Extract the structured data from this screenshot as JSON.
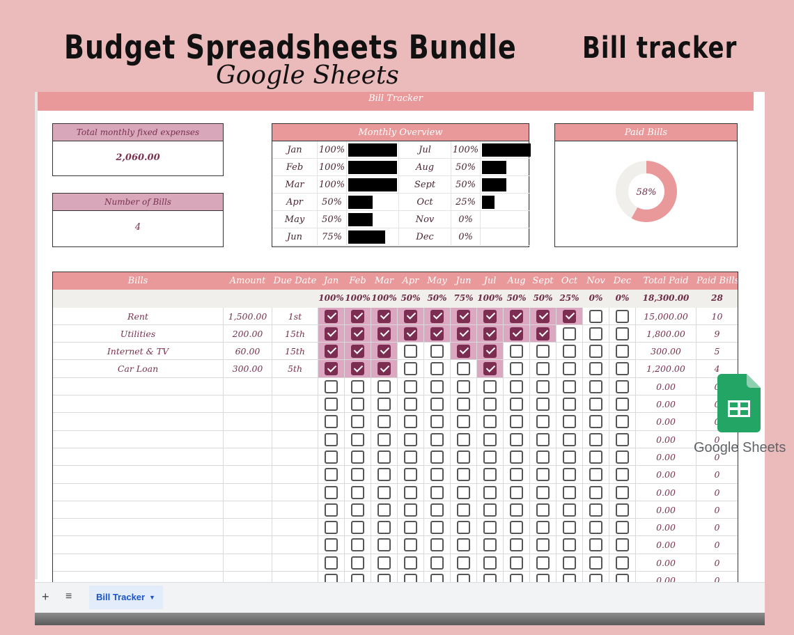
{
  "header": {
    "title": "Budget Spreadsheets Bundle",
    "subtitle": "Google Sheets",
    "right_title": "Bill tracker"
  },
  "sheet": {
    "banner": "Bill Tracker",
    "total_label": "Total monthly fixed expenses",
    "total_value": "2,060.00",
    "count_label": "Number of Bills",
    "count_value": "4",
    "overview_title": "Monthly Overview",
    "overview": [
      {
        "month": "Jan",
        "pct": "100%",
        "fill": 1.0
      },
      {
        "month": "Feb",
        "pct": "100%",
        "fill": 1.0
      },
      {
        "month": "Mar",
        "pct": "100%",
        "fill": 1.0
      },
      {
        "month": "Apr",
        "pct": "50%",
        "fill": 0.5
      },
      {
        "month": "May",
        "pct": "50%",
        "fill": 0.5
      },
      {
        "month": "Jun",
        "pct": "75%",
        "fill": 0.75
      },
      {
        "month": "Jul",
        "pct": "100%",
        "fill": 1.0
      },
      {
        "month": "Aug",
        "pct": "50%",
        "fill": 0.5
      },
      {
        "month": "Sept",
        "pct": "50%",
        "fill": 0.5
      },
      {
        "month": "Oct",
        "pct": "25%",
        "fill": 0.25
      },
      {
        "month": "Nov",
        "pct": "0%",
        "fill": 0
      },
      {
        "month": "Dec",
        "pct": "0%",
        "fill": 0
      }
    ],
    "paid_title": "Paid Bills",
    "paid_pct_label": "58%",
    "paid_fraction": 0.58,
    "colors": {
      "accent": "#e9999a",
      "check": "#7b2d52",
      "donut_rest": "#f1efeb"
    }
  },
  "bills": {
    "columns": [
      "Bills",
      "Amount",
      "Due Date",
      "Jan",
      "Feb",
      "Mar",
      "Apr",
      "May",
      "Jun",
      "Jul",
      "Aug",
      "Sept",
      "Oct",
      "Nov",
      "Dec",
      "Total Paid",
      "Paid Bills"
    ],
    "month_pcts": [
      "100%",
      "100%",
      "100%",
      "50%",
      "50%",
      "75%",
      "100%",
      "50%",
      "50%",
      "25%",
      "0%",
      "0%"
    ],
    "grand_total": "18,300.00",
    "grand_count": "28",
    "rows": [
      {
        "name": "Rent",
        "amount": "1,500.00",
        "due": "1st",
        "checks": [
          1,
          1,
          1,
          1,
          1,
          1,
          1,
          1,
          1,
          1,
          0,
          0
        ],
        "total": "15,000.00",
        "count": "10"
      },
      {
        "name": "Utilities",
        "amount": "200.00",
        "due": "15th",
        "checks": [
          1,
          1,
          1,
          1,
          1,
          1,
          1,
          1,
          1,
          0,
          0,
          0
        ],
        "total": "1,800.00",
        "count": "9"
      },
      {
        "name": "Internet & TV",
        "amount": "60.00",
        "due": "15th",
        "checks": [
          1,
          1,
          1,
          0,
          0,
          1,
          1,
          0,
          0,
          0,
          0,
          0
        ],
        "total": "300.00",
        "count": "5"
      },
      {
        "name": "Car Loan",
        "amount": "300.00",
        "due": "5th",
        "checks": [
          1,
          1,
          1,
          0,
          0,
          0,
          1,
          0,
          0,
          0,
          0,
          0
        ],
        "total": "1,200.00",
        "count": "4"
      }
    ],
    "empty_total": "0.00",
    "empty_count": "0",
    "empty_rows": 12
  },
  "tabs": {
    "add_icon": "plus-icon",
    "menu_icon": "list-icon",
    "active": "Bill Tracker"
  },
  "logo": {
    "text": "Google Sheets",
    "icon": "google-sheets-icon"
  }
}
